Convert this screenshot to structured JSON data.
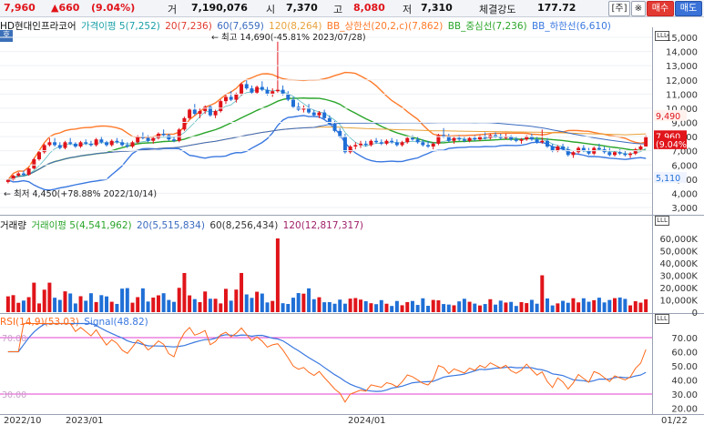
{
  "topbar": {
    "price": "7,960",
    "change": "▲660",
    "change_pct": "(9.04%)",
    "volume_label": "거",
    "volume": "7,190,076",
    "open_label": "시",
    "open": "7,370",
    "high_label": "고",
    "high": "8,080",
    "low_label": "저",
    "low": "7,310",
    "strength_label": "체결강도",
    "strength": "177.72",
    "btn_main": "[주]",
    "btn_settings": "※",
    "btn_buy": "매수",
    "btn_sell": "매도"
  },
  "colors": {
    "up": "#e0141a",
    "down": "#1f6fd6",
    "ma5": "#19a0a8",
    "ma20": "#e23a2f",
    "ma60": "#3b6bbf",
    "ma120": "#e8a23a",
    "bb_upper": "#ff7a2a",
    "bb_mid": "#2aa52a",
    "bb_lower": "#3a78e0",
    "rsi": "#ff6a1a",
    "signal": "#3a78e0"
  },
  "price_legend": {
    "name": "HD현대인프라코어",
    "ma5": "가격이평 5(7,252)",
    "ma20": "20(7,236)",
    "ma60": "60(7,659)",
    "ma120": "120(8,264)",
    "bb_upper": "BB_상한선(20,2,c)(7,862)",
    "bb_mid": "BB_중심선(7,236)",
    "bb_lower": "BB_하한선(6,610)"
  },
  "volume_legend": {
    "vol": "거래량",
    "vma5": "거래이평 5(4,541,962)",
    "vma20": "20(5,515,834)",
    "vma60": "60(8,256,434)",
    "vma120": "120(12,817,317)"
  },
  "rsi_legend": {
    "rsi": "RSI(14,9)(53.03)",
    "signal": "Signal(48.82)"
  },
  "pane_tag": "호",
  "annotations": {
    "high": "← 최고 14,690(-45.81% 2023/07/28)",
    "low": "← 최저 4,450(+78.88% 2022/10/14)"
  },
  "price_axis": [
    "15,000",
    "14,000",
    "13,000",
    "12,000",
    "11,000",
    "10,000",
    "9,000",
    "8,000",
    "7,000",
    "6,000",
    "5,000",
    "4,000",
    "3,000"
  ],
  "price_tags": {
    "bb_up": "9,490",
    "current": "7,960",
    "current_pct": "(9.04%)",
    "bb_low": "5,110"
  },
  "volume_axis": [
    "60,000K",
    "50,000K",
    "40,000K",
    "30,000K",
    "20,000K",
    "10,000K",
    "0"
  ],
  "rsi_axis": [
    "70.00",
    "60.00",
    "50.00",
    "40.00",
    "30.00",
    "20.00"
  ],
  "rsi_levels": [
    "70.00",
    "30.00"
  ],
  "date_labels": [
    "2022/10",
    "2023/01",
    "2024/01",
    "01/22"
  ],
  "corner_tag": "LLL",
  "chart_data": {
    "type": "candlestick",
    "current_price": 7960,
    "high": 14690,
    "low": 4450,
    "candles": [
      [
        4800,
        5000,
        4700,
        4950
      ],
      [
        4950,
        5300,
        4900,
        5250
      ],
      [
        5250,
        5500,
        5150,
        5400
      ],
      [
        5400,
        5600,
        5200,
        5300
      ],
      [
        5300,
        5800,
        5250,
        5750
      ],
      [
        5750,
        6500,
        5700,
        6400
      ],
      [
        6400,
        7000,
        6300,
        6900
      ],
      [
        6900,
        7500,
        6800,
        7400
      ],
      [
        7400,
        7900,
        7300,
        7600
      ],
      [
        7600,
        7900,
        7300,
        7400
      ],
      [
        7400,
        7600,
        7100,
        7200
      ],
      [
        7200,
        7700,
        7100,
        7600
      ],
      [
        7600,
        7900,
        7400,
        7500
      ],
      [
        7500,
        7600,
        7200,
        7300
      ],
      [
        7300,
        7700,
        7200,
        7600
      ],
      [
        7600,
        7800,
        7400,
        7500
      ],
      [
        7500,
        7700,
        7300,
        7400
      ],
      [
        7400,
        7900,
        7300,
        7800
      ],
      [
        7800,
        8000,
        7500,
        7600
      ],
      [
        7600,
        7700,
        7300,
        7400
      ],
      [
        7400,
        7800,
        7300,
        7700
      ],
      [
        7700,
        7900,
        7500,
        7600
      ],
      [
        7600,
        7800,
        7300,
        7400
      ],
      [
        7400,
        7600,
        7200,
        7300
      ],
      [
        7300,
        7700,
        7200,
        7600
      ],
      [
        7600,
        8100,
        7500,
        8000
      ],
      [
        8000,
        8300,
        7800,
        7900
      ],
      [
        7900,
        8100,
        7600,
        7700
      ],
      [
        7700,
        8000,
        7500,
        7900
      ],
      [
        7900,
        8300,
        7800,
        8200
      ],
      [
        8200,
        8500,
        8000,
        8100
      ],
      [
        8100,
        8200,
        7700,
        7800
      ],
      [
        7800,
        8000,
        7600,
        7700
      ],
      [
        7700,
        8600,
        7600,
        8500
      ],
      [
        8500,
        9400,
        8400,
        9300
      ],
      [
        9300,
        10000,
        9200,
        9900
      ],
      [
        9900,
        10300,
        9500,
        9600
      ],
      [
        9600,
        10000,
        9300,
        9800
      ],
      [
        9800,
        10200,
        9600,
        10100
      ],
      [
        10100,
        10200,
        9400,
        9500
      ],
      [
        9500,
        9900,
        9300,
        9800
      ],
      [
        9800,
        10600,
        9700,
        10500
      ],
      [
        10500,
        11000,
        10300,
        10800
      ],
      [
        10800,
        11200,
        10500,
        10600
      ],
      [
        10600,
        11100,
        10400,
        11000
      ],
      [
        11000,
        11800,
        10900,
        11700
      ],
      [
        11700,
        12000,
        11300,
        11400
      ],
      [
        11400,
        11600,
        11000,
        11100
      ],
      [
        11100,
        11600,
        11000,
        11500
      ],
      [
        11500,
        11900,
        11200,
        11300
      ],
      [
        11300,
        11500,
        10900,
        11000
      ],
      [
        11000,
        11400,
        10800,
        11200
      ],
      [
        11200,
        14690,
        11100,
        11300
      ],
      [
        11300,
        11600,
        10900,
        11000
      ],
      [
        11000,
        11200,
        10500,
        10600
      ],
      [
        10600,
        10800,
        10000,
        10100
      ],
      [
        10100,
        10400,
        9800,
        9900
      ],
      [
        9900,
        10200,
        9700,
        10000
      ],
      [
        10000,
        10300,
        9600,
        9700
      ],
      [
        9700,
        9900,
        9400,
        9500
      ],
      [
        9500,
        9800,
        9300,
        9700
      ],
      [
        9700,
        9900,
        9200,
        9300
      ],
      [
        9300,
        9500,
        8800,
        8900
      ],
      [
        8900,
        9100,
        8300,
        8400
      ],
      [
        8400,
        8600,
        7900,
        8000
      ],
      [
        8000,
        8200,
        6800,
        6900
      ],
      [
        6900,
        7400,
        6800,
        7300
      ],
      [
        7300,
        7600,
        7100,
        7400
      ],
      [
        7400,
        7700,
        7200,
        7500
      ],
      [
        7500,
        7700,
        7300,
        7400
      ],
      [
        7400,
        7800,
        7300,
        7700
      ],
      [
        7700,
        7900,
        7500,
        7600
      ],
      [
        7600,
        7800,
        7400,
        7500
      ],
      [
        7500,
        7800,
        7400,
        7700
      ],
      [
        7700,
        7900,
        7500,
        7600
      ],
      [
        7600,
        7800,
        7300,
        7400
      ],
      [
        7400,
        7700,
        7300,
        7600
      ],
      [
        7600,
        8000,
        7500,
        7900
      ],
      [
        7900,
        8100,
        7700,
        7800
      ],
      [
        7800,
        8000,
        7500,
        7600
      ],
      [
        7600,
        7800,
        7300,
        7400
      ],
      [
        7400,
        7700,
        7200,
        7300
      ],
      [
        7300,
        7600,
        7100,
        7500
      ],
      [
        7500,
        8200,
        7400,
        8100
      ],
      [
        8100,
        8600,
        7900,
        8000
      ],
      [
        8000,
        8200,
        7600,
        7700
      ],
      [
        7700,
        8000,
        7500,
        7900
      ],
      [
        7900,
        8100,
        7700,
        7800
      ],
      [
        7800,
        8000,
        7600,
        7700
      ],
      [
        7700,
        8000,
        7600,
        7900
      ],
      [
        7900,
        8100,
        7700,
        7800
      ],
      [
        7800,
        8100,
        7700,
        8000
      ],
      [
        8000,
        8300,
        7800,
        7900
      ],
      [
        7900,
        8200,
        7800,
        8100
      ],
      [
        8100,
        8300,
        7900,
        8000
      ],
      [
        8000,
        8200,
        7800,
        7900
      ],
      [
        7900,
        8200,
        7800,
        8000
      ],
      [
        8000,
        8100,
        7700,
        7800
      ],
      [
        7800,
        8000,
        7600,
        7700
      ],
      [
        7700,
        7900,
        7500,
        7800
      ],
      [
        7800,
        8100,
        7700,
        8000
      ],
      [
        8000,
        8200,
        7700,
        7800
      ],
      [
        7800,
        8000,
        7500,
        7600
      ],
      [
        7600,
        8500,
        7500,
        7700
      ],
      [
        7700,
        7900,
        7200,
        7300
      ],
      [
        7300,
        7500,
        6900,
        7000
      ],
      [
        7000,
        7400,
        6900,
        7300
      ],
      [
        7300,
        7500,
        7000,
        7100
      ],
      [
        7100,
        7300,
        6600,
        6700
      ],
      [
        6700,
        7000,
        6500,
        6900
      ],
      [
        6900,
        7300,
        6800,
        7200
      ],
      [
        7200,
        7400,
        6900,
        7000
      ],
      [
        7000,
        7200,
        6700,
        6800
      ],
      [
        6800,
        7300,
        6700,
        7200
      ],
      [
        7200,
        7500,
        7000,
        7100
      ],
      [
        7100,
        7300,
        6800,
        6900
      ],
      [
        6900,
        7200,
        6600,
        6700
      ],
      [
        6700,
        7000,
        6600,
        6900
      ],
      [
        6900,
        7100,
        6700,
        6800
      ],
      [
        6800,
        7000,
        6600,
        6700
      ],
      [
        6700,
        6900,
        6500,
        6800
      ],
      [
        6800,
        7200,
        6700,
        7100
      ],
      [
        7100,
        7400,
        7000,
        7300
      ],
      [
        7300,
        8080,
        7310,
        7960
      ]
    ]
  }
}
